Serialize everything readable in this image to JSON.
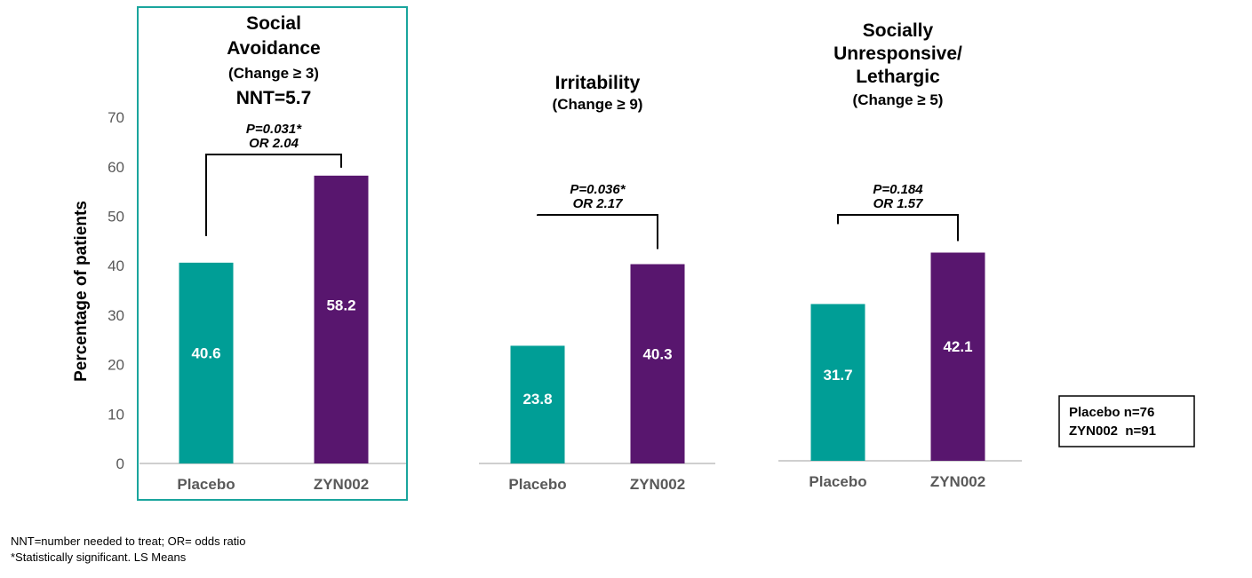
{
  "chart_data": {
    "type": "bar",
    "ylabel": "Percentage of patients",
    "ylim": [
      0,
      70
    ],
    "yticks": [
      0,
      10,
      20,
      30,
      40,
      50,
      60,
      70
    ],
    "grid": false,
    "categories": [
      "Placebo",
      "ZYN002"
    ],
    "colors": {
      "Placebo": "#009e96",
      "ZYN002": "#58166e",
      "highlight_border": "#1aa59d"
    },
    "panels": [
      {
        "title_lines": [
          "Social",
          "Avoidance",
          "(Change ≥ 3)",
          "NNT=5.7"
        ],
        "highlighted": true,
        "values": [
          40.6,
          58.2
        ],
        "value_labels": [
          "40.6",
          "58.2"
        ],
        "annotation": [
          "P=0.031*",
          "OR 2.04"
        ]
      },
      {
        "title_lines": [
          "Irritability",
          "(Change ≥ 9)"
        ],
        "highlighted": false,
        "values": [
          23.8,
          40.3
        ],
        "value_labels": [
          "23.8",
          "40.3"
        ],
        "annotation": [
          "P=0.036*",
          "OR 2.17"
        ]
      },
      {
        "title_lines": [
          "Socially",
          "Unresponsive/",
          "Lethargic",
          "(Change ≥ 5)"
        ],
        "highlighted": false,
        "values": [
          31.7,
          42.1
        ],
        "value_labels": [
          "31.7",
          "42.1"
        ],
        "annotation": [
          "P=0.184",
          "OR 1.57"
        ]
      }
    ],
    "legend_box": [
      "Placebo n=76",
      "ZYN002  n=91"
    ]
  },
  "footnotes": {
    "line1": "NNT=number needed to treat; OR= odds ratio",
    "line2": "*Statistically significant. LS Means"
  }
}
